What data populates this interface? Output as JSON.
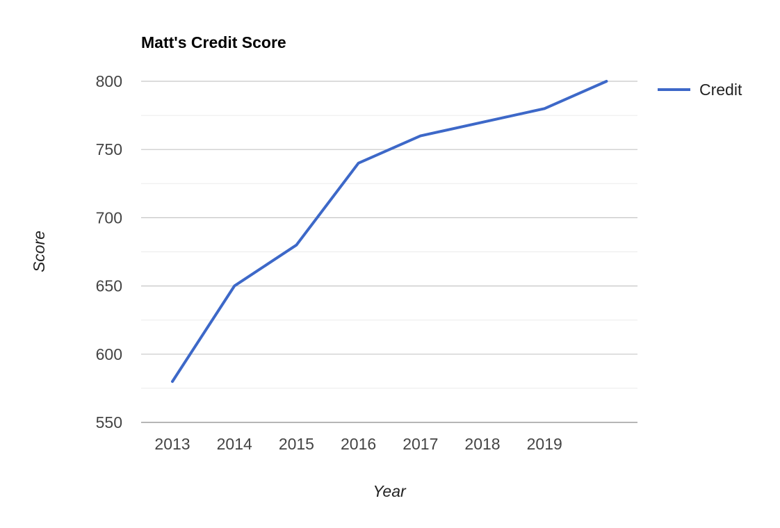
{
  "chart_data": {
    "type": "line",
    "title": "Matt's Credit Score",
    "xlabel": "Year",
    "ylabel": "Score",
    "x_tick_labels": [
      "2013",
      "2014",
      "2015",
      "2016",
      "2017",
      "2018",
      "2019"
    ],
    "x": [
      2013,
      2014,
      2015,
      2016,
      2017,
      2018,
      2019,
      2020
    ],
    "series": [
      {
        "name": "Credit",
        "color": "#3d68c8",
        "values": [
          580,
          650,
          680,
          740,
          760,
          770,
          780,
          800
        ]
      }
    ],
    "ylim": [
      550,
      800
    ],
    "y_ticks": [
      550,
      600,
      650,
      700,
      750,
      800
    ],
    "grid": true,
    "legend_position": "right",
    "colors": {
      "major_grid": "#c6c6c6",
      "minor_grid": "#ebebeb",
      "baseline": "#9e9e9e"
    }
  }
}
